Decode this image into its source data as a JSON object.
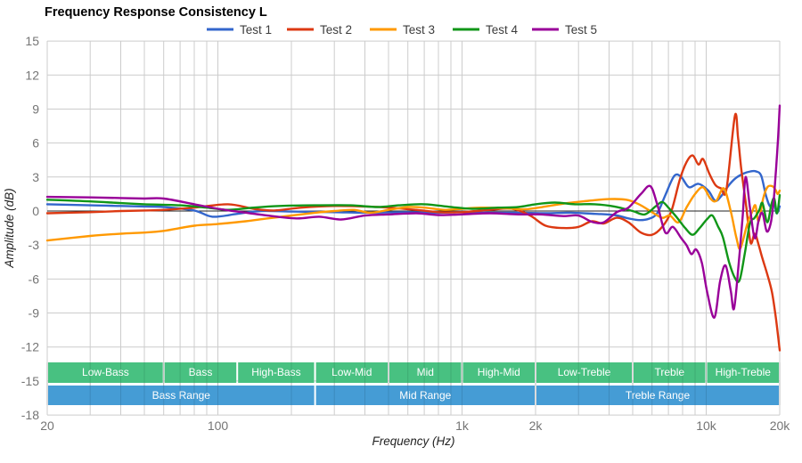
{
  "title": "Frequency Response Consistency L",
  "axes": {
    "y": {
      "title": "Amplitude (dB)",
      "min": -18,
      "max": 15,
      "step": 3,
      "ticks": [
        15,
        12,
        9,
        6,
        3,
        0,
        -3,
        -6,
        -9,
        -12,
        -15,
        -18
      ]
    },
    "x": {
      "title": "Frequency (Hz)",
      "min": 20,
      "max": 20000,
      "scale": "log",
      "ticks": [
        {
          "freq": 20,
          "label": "20"
        },
        {
          "freq": 100,
          "label": "100"
        },
        {
          "freq": 1000,
          "label": "1k"
        },
        {
          "freq": 2000,
          "label": "2k"
        },
        {
          "freq": 10000,
          "label": "10k"
        },
        {
          "freq": 20000,
          "label": "20k"
        }
      ]
    }
  },
  "colors": {
    "grid": "#cccccc",
    "zero_line": "#222222",
    "tick_text": "#757575",
    "band_text": "#ffffff",
    "sub_band": "#3EBE7A",
    "main_band": "#3B97D3"
  },
  "bands": {
    "sub": {
      "color": "#3EBE7A",
      "items": [
        {
          "label": "Low-Bass",
          "from": 20,
          "to": 60
        },
        {
          "label": "Bass",
          "from": 60,
          "to": 120
        },
        {
          "label": "High-Bass",
          "from": 120,
          "to": 250
        },
        {
          "label": "Low-Mid",
          "from": 250,
          "to": 500
        },
        {
          "label": "Mid",
          "from": 500,
          "to": 1000
        },
        {
          "label": "High-Mid",
          "from": 1000,
          "to": 2000
        },
        {
          "label": "Low-Treble",
          "from": 2000,
          "to": 5000
        },
        {
          "label": "Treble",
          "from": 5000,
          "to": 10000
        },
        {
          "label": "High-Treble",
          "from": 10000,
          "to": 20000
        }
      ]
    },
    "main": {
      "color": "#3B97D3",
      "items": [
        {
          "label": "Bass Range",
          "from": 20,
          "to": 250
        },
        {
          "label": "Mid Range",
          "from": 250,
          "to": 2000
        },
        {
          "label": "Treble Range",
          "from": 2000,
          "to": 20000
        }
      ]
    }
  },
  "chart_data": {
    "type": "line",
    "title": "Frequency Response Consistency L",
    "xlabel": "Frequency (Hz)",
    "ylabel": "Amplitude (dB)",
    "x_scale": "log",
    "xlim": [
      20,
      20000
    ],
    "ylim": [
      -18,
      15
    ],
    "grid": true,
    "legend_position": "top",
    "series": [
      {
        "name": "Test 1",
        "color": "#3366CC",
        "points": [
          [
            20,
            0.6
          ],
          [
            30,
            0.5
          ],
          [
            40,
            0.45
          ],
          [
            50,
            0.4
          ],
          [
            60,
            0.35
          ],
          [
            80,
            0.05
          ],
          [
            95,
            -0.5
          ],
          [
            120,
            -0.25
          ],
          [
            150,
            0
          ],
          [
            200,
            -0.05
          ],
          [
            300,
            -0.1
          ],
          [
            400,
            -0.15
          ],
          [
            600,
            -0.1
          ],
          [
            800,
            -0.15
          ],
          [
            1000,
            -0.1
          ],
          [
            1300,
            -0.15
          ],
          [
            1700,
            -0.15
          ],
          [
            2200,
            -0.2
          ],
          [
            2800,
            -0.15
          ],
          [
            3500,
            -0.25
          ],
          [
            4200,
            -0.35
          ],
          [
            4800,
            -0.65
          ],
          [
            5300,
            -0.8
          ],
          [
            5800,
            -0.7
          ],
          [
            6300,
            -0.2
          ],
          [
            6800,
            1.4
          ],
          [
            7400,
            3.1
          ],
          [
            7900,
            3.0
          ],
          [
            8500,
            2.1
          ],
          [
            9300,
            2.4
          ],
          [
            10200,
            1.8
          ],
          [
            10900,
            0.9
          ],
          [
            11600,
            1.4
          ],
          [
            12300,
            2.2
          ],
          [
            13200,
            2.9
          ],
          [
            14200,
            3.3
          ],
          [
            15200,
            3.5
          ],
          [
            16000,
            3.5
          ],
          [
            16800,
            3.1
          ],
          [
            17600,
            1.3
          ],
          [
            18300,
            0.4
          ],
          [
            18900,
            0.9
          ],
          [
            19400,
            -0.2
          ],
          [
            20000,
            0.4
          ]
        ]
      },
      {
        "name": "Test 2",
        "color": "#DC3912",
        "points": [
          [
            20,
            -0.2
          ],
          [
            30,
            -0.1
          ],
          [
            40,
            0
          ],
          [
            50,
            0.05
          ],
          [
            60,
            0.1
          ],
          [
            80,
            0.3
          ],
          [
            110,
            0.6
          ],
          [
            140,
            0.2
          ],
          [
            170,
            0.05
          ],
          [
            220,
            0.3
          ],
          [
            300,
            0.45
          ],
          [
            400,
            0.4
          ],
          [
            500,
            0.3
          ],
          [
            650,
            0.1
          ],
          [
            800,
            -0.1
          ],
          [
            1000,
            -0.1
          ],
          [
            1300,
            0.1
          ],
          [
            1600,
            0.2
          ],
          [
            1900,
            -0.4
          ],
          [
            2200,
            -1.3
          ],
          [
            2600,
            -1.5
          ],
          [
            3000,
            -1.4
          ],
          [
            3400,
            -0.9
          ],
          [
            3800,
            -1.1
          ],
          [
            4300,
            -0.6
          ],
          [
            4800,
            -1.0
          ],
          [
            5400,
            -1.9
          ],
          [
            6000,
            -2.1
          ],
          [
            6600,
            -1.4
          ],
          [
            7200,
            0
          ],
          [
            7800,
            2.8
          ],
          [
            8300,
            4.3
          ],
          [
            8800,
            4.9
          ],
          [
            9300,
            4.1
          ],
          [
            9700,
            4.6
          ],
          [
            10300,
            3.3
          ],
          [
            10900,
            2.3
          ],
          [
            11500,
            2.0
          ],
          [
            12100,
            1.9
          ],
          [
            13100,
            8.4
          ],
          [
            13500,
            6.5
          ],
          [
            13900,
            3.8
          ],
          [
            14600,
            0.3
          ],
          [
            15200,
            -2.8
          ],
          [
            15800,
            -2.0
          ],
          [
            16400,
            -3.0
          ],
          [
            17000,
            -4.2
          ],
          [
            17800,
            -5.6
          ],
          [
            18600,
            -7.2
          ],
          [
            19300,
            -9.5
          ],
          [
            20000,
            -12.3
          ]
        ]
      },
      {
        "name": "Test 3",
        "color": "#FF9900",
        "points": [
          [
            20,
            -2.6
          ],
          [
            30,
            -2.2
          ],
          [
            40,
            -2.0
          ],
          [
            50,
            -1.9
          ],
          [
            60,
            -1.75
          ],
          [
            80,
            -1.3
          ],
          [
            100,
            -1.15
          ],
          [
            130,
            -0.9
          ],
          [
            160,
            -0.65
          ],
          [
            200,
            -0.4
          ],
          [
            250,
            -0.15
          ],
          [
            300,
            0
          ],
          [
            360,
            0.1
          ],
          [
            420,
            -0.15
          ],
          [
            500,
            0.1
          ],
          [
            600,
            0.35
          ],
          [
            700,
            0.3
          ],
          [
            850,
            0.1
          ],
          [
            1000,
            0.2
          ],
          [
            1200,
            0.3
          ],
          [
            1500,
            0.25
          ],
          [
            1800,
            0.15
          ],
          [
            2200,
            0.4
          ],
          [
            2700,
            0.7
          ],
          [
            3300,
            0.9
          ],
          [
            4000,
            1.05
          ],
          [
            4700,
            1.0
          ],
          [
            5300,
            0.6
          ],
          [
            6000,
            -0.1
          ],
          [
            6600,
            -0.6
          ],
          [
            7100,
            -0.4
          ],
          [
            7700,
            -1.0
          ],
          [
            8300,
            0.3
          ],
          [
            9000,
            1.5
          ],
          [
            9700,
            2.1
          ],
          [
            10400,
            1.1
          ],
          [
            11000,
            0.9
          ],
          [
            11800,
            2.0
          ],
          [
            12600,
            0
          ],
          [
            13300,
            -2.4
          ],
          [
            13800,
            -3.3
          ],
          [
            14700,
            -1.2
          ],
          [
            15400,
            -0.1
          ],
          [
            15900,
            0.5
          ],
          [
            16400,
            -0.9
          ],
          [
            17100,
            1.1
          ],
          [
            17800,
            2.1
          ],
          [
            18600,
            2.2
          ],
          [
            19200,
            1.9
          ],
          [
            19600,
            1.5
          ],
          [
            20000,
            1.8
          ]
        ]
      },
      {
        "name": "Test 4",
        "color": "#109618",
        "points": [
          [
            20,
            1.0
          ],
          [
            30,
            0.85
          ],
          [
            40,
            0.7
          ],
          [
            50,
            0.6
          ],
          [
            70,
            0.5
          ],
          [
            90,
            0.3
          ],
          [
            110,
            0.1
          ],
          [
            140,
            0.3
          ],
          [
            180,
            0.45
          ],
          [
            250,
            0.5
          ],
          [
            350,
            0.5
          ],
          [
            450,
            0.35
          ],
          [
            550,
            0.5
          ],
          [
            700,
            0.6
          ],
          [
            900,
            0.35
          ],
          [
            1100,
            0.2
          ],
          [
            1400,
            0.3
          ],
          [
            1700,
            0.35
          ],
          [
            2000,
            0.6
          ],
          [
            2400,
            0.75
          ],
          [
            2900,
            0.6
          ],
          [
            3500,
            0.6
          ],
          [
            4200,
            0.4
          ],
          [
            5000,
            0
          ],
          [
            5600,
            -0.3
          ],
          [
            6200,
            0.4
          ],
          [
            6600,
            0.8
          ],
          [
            7000,
            0.3
          ],
          [
            7600,
            -0.6
          ],
          [
            8200,
            -1.5
          ],
          [
            8800,
            -2.1
          ],
          [
            9400,
            -1.5
          ],
          [
            10100,
            -0.7
          ],
          [
            10600,
            -0.4
          ],
          [
            11200,
            -1.4
          ],
          [
            11700,
            -2.3
          ],
          [
            12400,
            -4.5
          ],
          [
            13100,
            -5.9
          ],
          [
            13700,
            -6.1
          ],
          [
            14400,
            -3.7
          ],
          [
            15100,
            -1.1
          ],
          [
            15800,
            -0.6
          ],
          [
            16500,
            0.1
          ],
          [
            17000,
            0.7
          ],
          [
            17800,
            -1.0
          ],
          [
            18500,
            0.6
          ],
          [
            19000,
            1.1
          ],
          [
            19500,
            -0.2
          ],
          [
            20000,
            1.4
          ]
        ]
      },
      {
        "name": "Test 5",
        "color": "#990099",
        "points": [
          [
            20,
            1.25
          ],
          [
            30,
            1.2
          ],
          [
            40,
            1.15
          ],
          [
            50,
            1.1
          ],
          [
            60,
            1.1
          ],
          [
            80,
            0.6
          ],
          [
            100,
            0.2
          ],
          [
            120,
            -0.05
          ],
          [
            160,
            -0.4
          ],
          [
            210,
            -0.65
          ],
          [
            260,
            -0.5
          ],
          [
            320,
            -0.75
          ],
          [
            400,
            -0.4
          ],
          [
            500,
            -0.3
          ],
          [
            650,
            -0.2
          ],
          [
            800,
            -0.35
          ],
          [
            1000,
            -0.3
          ],
          [
            1300,
            -0.2
          ],
          [
            1700,
            -0.3
          ],
          [
            2100,
            -0.3
          ],
          [
            2600,
            -0.45
          ],
          [
            3000,
            -0.4
          ],
          [
            3400,
            -0.95
          ],
          [
            3800,
            -1.0
          ],
          [
            4300,
            -0.1
          ],
          [
            4800,
            0.3
          ],
          [
            5400,
            1.5
          ],
          [
            5900,
            2.2
          ],
          [
            6300,
            0.6
          ],
          [
            6800,
            -1.9
          ],
          [
            7300,
            -1.4
          ],
          [
            7900,
            -2.4
          ],
          [
            8300,
            -3.0
          ],
          [
            8700,
            -3.8
          ],
          [
            9100,
            -3.4
          ],
          [
            9600,
            -4.6
          ],
          [
            10100,
            -7.2
          ],
          [
            10800,
            -9.4
          ],
          [
            11400,
            -6.2
          ],
          [
            12000,
            -4.8
          ],
          [
            12600,
            -7.0
          ],
          [
            13000,
            -8.6
          ],
          [
            13600,
            -4.5
          ],
          [
            14100,
            -0.5
          ],
          [
            14500,
            3.0
          ],
          [
            15100,
            0.3
          ],
          [
            15800,
            -2.4
          ],
          [
            16400,
            -0.8
          ],
          [
            17000,
            -0.2
          ],
          [
            17700,
            -1.8
          ],
          [
            18400,
            -1.0
          ],
          [
            18900,
            1.0
          ],
          [
            19300,
            3.6
          ],
          [
            19700,
            6.5
          ],
          [
            20000,
            9.3
          ]
        ]
      }
    ]
  }
}
